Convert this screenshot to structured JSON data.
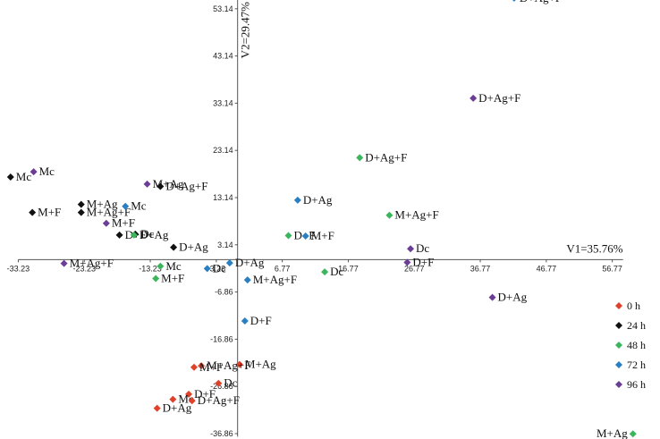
{
  "chart_data": {
    "type": "scatter",
    "title": "",
    "xlabel": "V1=35.76%",
    "ylabel": "V2=29.47%",
    "xlim": [
      -36,
      64
    ],
    "ylim": [
      -38,
      55
    ],
    "x_ticks": [
      -33.23,
      -23.23,
      -13.23,
      -3.23,
      6.77,
      16.77,
      26.77,
      36.77,
      46.77,
      56.77
    ],
    "x_tick_labels": [
      "-33.23",
      "-23.23",
      "-13.23",
      "-3.23",
      "6.77",
      "16.77",
      "26.77",
      "36.77",
      "46.77",
      "56.77"
    ],
    "y_ticks": [
      53.14,
      43.14,
      33.14,
      23.14,
      13.14,
      3.14,
      -6.86,
      -16.86,
      -26.86,
      -36.86
    ],
    "y_tick_labels": [
      "53.14",
      "43.14",
      "33.14",
      "23.14",
      "13.14",
      "3.14",
      "-6.86",
      "-16.86",
      "-26.86",
      "-36.86"
    ],
    "grid": false,
    "legend_position": "right",
    "series": [
      {
        "name": "0 h",
        "color": "#e0412a",
        "points": [
          {
            "label": "M+Ag",
            "x": 0.3,
            "y": -22.2
          },
          {
            "label": "M+Ag+F",
            "x": -5.5,
            "y": -22.5
          },
          {
            "label": "M+F",
            "x": -6.6,
            "y": -22.8
          },
          {
            "label": "Dc",
            "x": -2.9,
            "y": -26.2
          },
          {
            "label": "D+F",
            "x": -7.4,
            "y": -28.5
          },
          {
            "label": "Mc",
            "x": -9.8,
            "y": -29.6
          },
          {
            "label": "D+Ag+F",
            "x": -6.9,
            "y": -29.9
          },
          {
            "label": "D+Ag",
            "x": -12.2,
            "y": -31.5
          }
        ]
      },
      {
        "name": "24 h",
        "color": "#111111",
        "points": [
          {
            "label": "Mc",
            "x": -34.4,
            "y": 17.5
          },
          {
            "label": "M+Ag",
            "x": -23.7,
            "y": 11.7
          },
          {
            "label": "M+Ag+F",
            "x": -23.7,
            "y": 10.0
          },
          {
            "label": "M+F",
            "x": -31.1,
            "y": 10.0
          },
          {
            "label": "D+Ag+F",
            "x": -11.7,
            "y": 15.5
          },
          {
            "label": "D+F",
            "x": -17.9,
            "y": 5.2
          },
          {
            "label": "Dc",
            "x": -15.5,
            "y": 5.4
          },
          {
            "label": "D+Ag",
            "x": -9.7,
            "y": 2.6
          }
        ]
      },
      {
        "name": "48 h",
        "color": "#3cb55c",
        "points": [
          {
            "label": "D+Ag+F",
            "x": 18.5,
            "y": 21.6
          },
          {
            "label": "M+Ag+F",
            "x": 23.0,
            "y": 9.4
          },
          {
            "label": "D+F",
            "x": 7.7,
            "y": 5.1
          },
          {
            "label": "Dc",
            "x": 13.2,
            "y": -2.6
          },
          {
            "label": "Mc",
            "x": -11.7,
            "y": -1.4
          },
          {
            "label": "M+F",
            "x": -12.4,
            "y": -4.0
          },
          {
            "label": "D+Ag",
            "x": -15.7,
            "y": 5.2
          },
          {
            "label": "M+Ag",
            "x": 59.9,
            "y": -36.9
          }
        ]
      },
      {
        "name": "72 h",
        "color": "#2a7fc1",
        "points": [
          {
            "label": "D+Ag+F",
            "x": 41.9,
            "y": 55.4
          },
          {
            "label": "D+Ag",
            "x": 9.1,
            "y": 12.6
          },
          {
            "label": "M+F",
            "x": 10.3,
            "y": 5.0
          },
          {
            "label": "Mc",
            "x": -17.0,
            "y": 11.3
          },
          {
            "label": "D+Ag",
            "x": -1.2,
            "y": -0.7
          },
          {
            "label": "Dc",
            "x": -4.6,
            "y": -1.9
          },
          {
            "label": "M+Ag+F",
            "x": 1.5,
            "y": -4.3
          },
          {
            "label": "D+F",
            "x": 1.1,
            "y": -13.0
          }
        ]
      },
      {
        "name": "96 h",
        "color": "#6b3d97",
        "points": [
          {
            "label": "D+Ag+F",
            "x": 35.7,
            "y": 34.2
          },
          {
            "label": "Mc",
            "x": -30.9,
            "y": 18.6
          },
          {
            "label": "M+Ag",
            "x": -13.7,
            "y": 16.0
          },
          {
            "label": "M+F",
            "x": -19.9,
            "y": 7.7
          },
          {
            "label": "Dc",
            "x": 26.2,
            "y": 2.3
          },
          {
            "label": "D+F",
            "x": 25.7,
            "y": -0.6
          },
          {
            "label": "M+Ag+F",
            "x": -26.3,
            "y": -0.8
          },
          {
            "label": "D+Ag",
            "x": 38.6,
            "y": -8.0
          }
        ]
      }
    ]
  }
}
